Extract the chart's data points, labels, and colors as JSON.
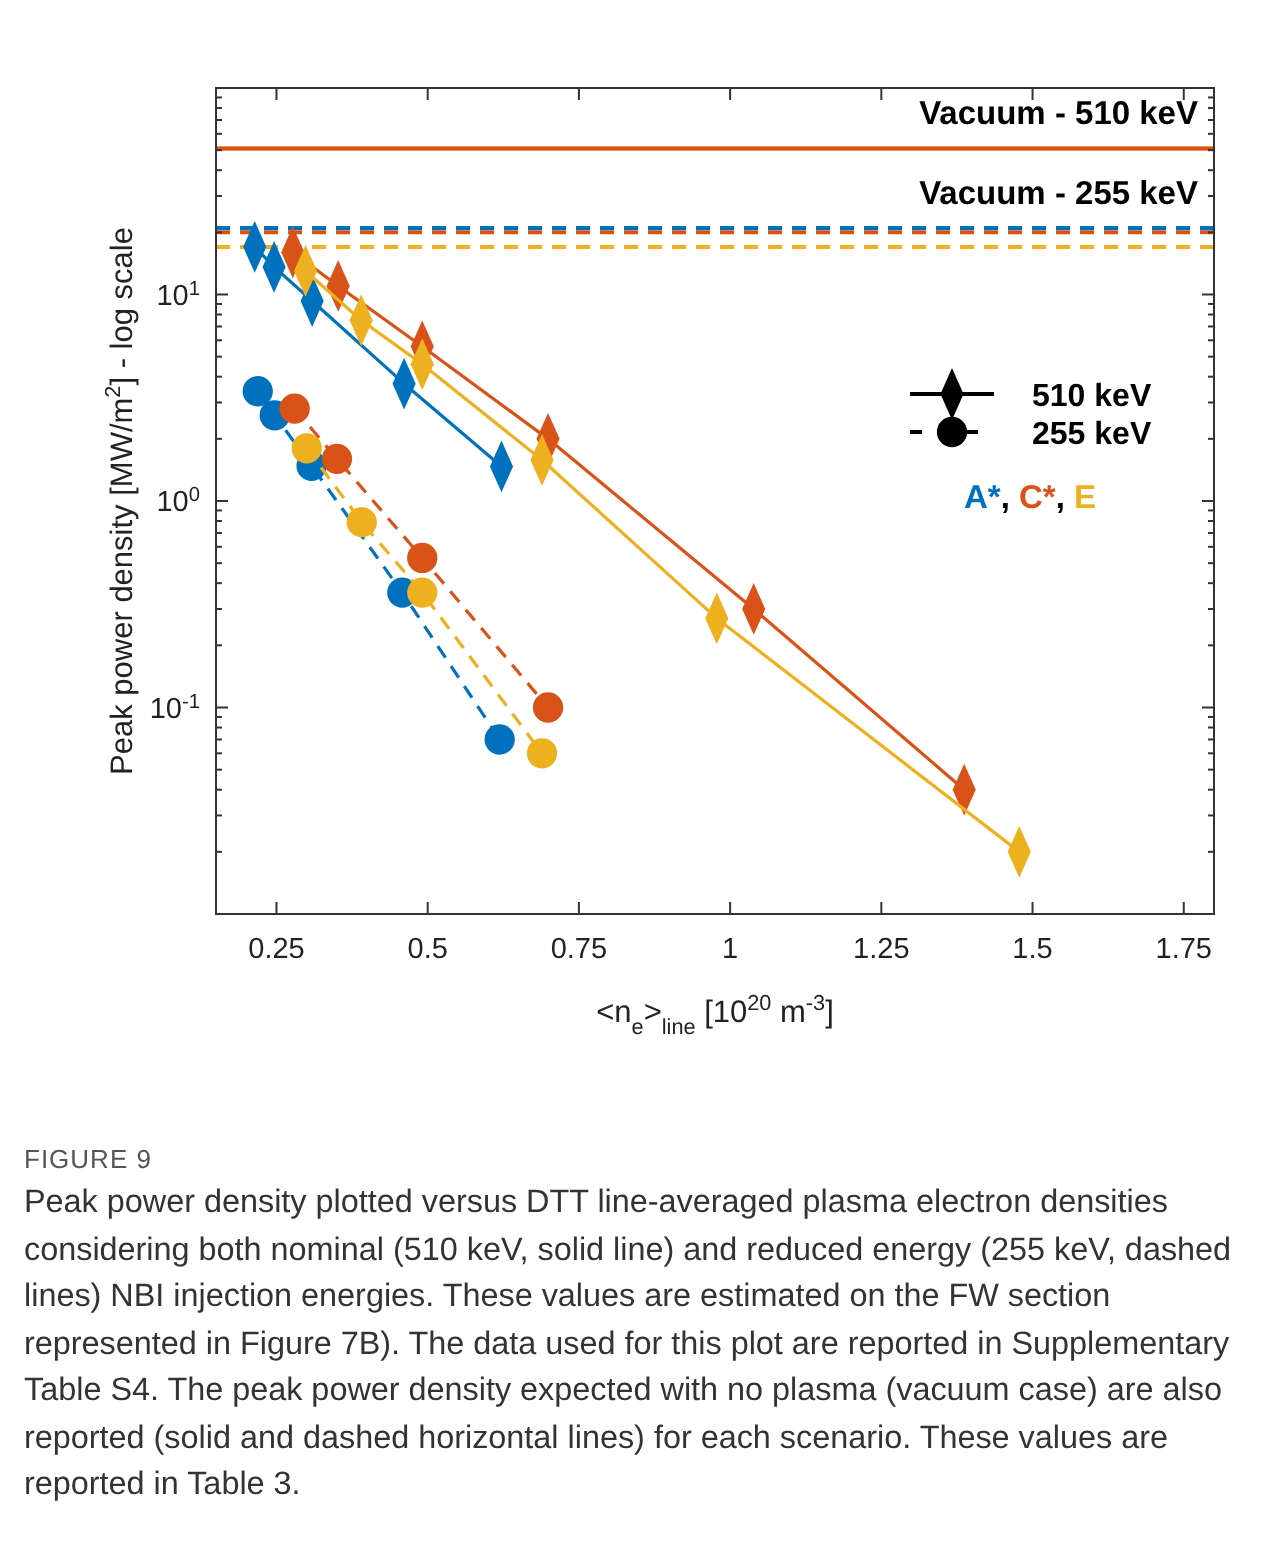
{
  "chart_data": {
    "type": "line",
    "xlabel": "<n$_{e}$>$_{line}$ [10$^{20}$ m$^{-3}$]",
    "ylabel": "Peak power density [MW/m$^{2}$] - log scale",
    "log": "y",
    "grid": false,
    "xlim": [
      0.15,
      1.8
    ],
    "xticks": [
      0.25,
      0.5,
      0.75,
      1,
      1.25,
      1.5,
      1.75
    ],
    "ylim": [
      0.01,
      100
    ],
    "yticks": [
      {
        "value": 0.01,
        "label": null
      },
      {
        "value": 0.02,
        "label": null
      },
      {
        "value": 0.03,
        "label": null
      },
      {
        "value": 0.04,
        "label": null
      },
      {
        "value": 0.05,
        "label": null
      },
      {
        "value": 0.06,
        "label": null
      },
      {
        "value": 0.07,
        "label": null
      },
      {
        "value": 0.08,
        "label": null
      },
      {
        "value": 0.09,
        "label": null
      },
      {
        "value": 0.1,
        "label": "10$^{-1}$"
      },
      {
        "value": 0.2,
        "label": null
      },
      {
        "value": 0.3,
        "label": null
      },
      {
        "value": 0.4,
        "label": null
      },
      {
        "value": 0.5,
        "label": null
      },
      {
        "value": 0.6,
        "label": null
      },
      {
        "value": 0.7,
        "label": null
      },
      {
        "value": 0.8,
        "label": null
      },
      {
        "value": 0.9,
        "label": null
      },
      {
        "value": 1,
        "label": "10$^{0}$"
      },
      {
        "value": 2,
        "label": null
      },
      {
        "value": 3,
        "label": null
      },
      {
        "value": 4,
        "label": null
      },
      {
        "value": 5,
        "label": null
      },
      {
        "value": 6,
        "label": null
      },
      {
        "value": 7,
        "label": null
      },
      {
        "value": 8,
        "label": null
      },
      {
        "value": 9,
        "label": null
      },
      {
        "value": 10,
        "label": "10$^{1}$"
      },
      {
        "value": 20,
        "label": null
      },
      {
        "value": 30,
        "label": null
      },
      {
        "value": 40,
        "label": null
      },
      {
        "value": 50,
        "label": null
      },
      {
        "value": 60,
        "label": null
      },
      {
        "value": 70,
        "label": null
      },
      {
        "value": 80,
        "label": null
      },
      {
        "value": 90,
        "label": null
      },
      {
        "value": 100,
        "label": null
      }
    ],
    "series": [
      {
        "color": "#0072bd",
        "marker": "diamond",
        "line_style": "solid",
        "x": [
          0.214,
          0.246,
          0.309,
          0.461,
          0.622
        ],
        "values": [
          17,
          13.6,
          9.3,
          3.7,
          1.47
        ]
      },
      {
        "color": "#d95319",
        "marker": "diamond",
        "line_style": "solid",
        "x": [
          0.277,
          0.352,
          0.491,
          0.699,
          1.039,
          1.387
        ],
        "values": [
          16,
          11,
          5.6,
          2.0,
          0.3,
          0.04
        ]
      },
      {
        "color": "#edb120",
        "marker": "diamond",
        "line_style": "solid",
        "x": [
          0.298,
          0.39,
          0.491,
          0.689,
          0.978,
          1.478
        ],
        "values": [
          13,
          7.5,
          4.6,
          1.58,
          0.27,
          0.02
        ]
      },
      {
        "color": "#0072bd",
        "marker": "circle",
        "line_style": "dashed",
        "x": [
          0.219,
          0.247,
          0.308,
          0.458,
          0.619
        ],
        "values": [
          3.4,
          2.6,
          1.48,
          0.36,
          0.07
        ]
      },
      {
        "color": "#d95319",
        "marker": "circle",
        "line_style": "dashed",
        "x": [
          0.28,
          0.35,
          0.491,
          0.699
        ],
        "values": [
          2.8,
          1.6,
          0.53,
          0.1
        ]
      },
      {
        "color": "#edb120",
        "marker": "circle",
        "line_style": "dashed",
        "x": [
          0.3,
          0.391,
          0.491,
          0.689
        ],
        "values": [
          1.8,
          0.79,
          0.36,
          0.06
        ]
      }
    ],
    "ref_lines": [
      {
        "axis": "y",
        "value": 51,
        "color": "#edb120",
        "line_style": "solid"
      },
      {
        "axis": "y",
        "value": 51,
        "color": "#d95319",
        "line_style": "solid",
        "label": "Vacuum - 510 keV"
      },
      {
        "axis": "y",
        "value": 17,
        "color": "#edb120",
        "line_style": "dashed"
      },
      {
        "axis": "y",
        "value": 20,
        "color": "#d95319",
        "line_style": "dashed"
      },
      {
        "axis": "y",
        "value": 21,
        "color": "#0072bd",
        "line_style": "dashed",
        "label": "Vacuum - 255 keV"
      }
    ],
    "annotations": [
      "510 keV",
      "255 keV",
      "A*, C*, E",
      "FIGURE 9",
      "Peak power density plotted versus DTT line-averaged plasma electron densities considering both nominal (510 keV, solid line) and reduced energy (255 keV, dashed lines) NBI injection energies. These values are estimated on the FW section represented in Figure 7B). The data used for this plot are reported in Supplementary Table S4. The peak power density expected with no plasma (vacuum case) are also reported (solid and dashed horizontal lines) for each scenario. These values are reported in Table 3."
    ]
  }
}
